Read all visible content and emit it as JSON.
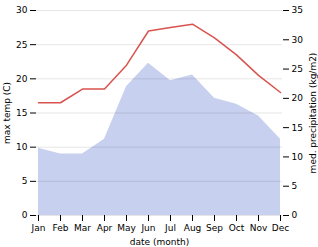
{
  "chart_data": {
    "type": "line",
    "xlabel": "date (month)",
    "ylabel": "max temp (C)",
    "y2label": "med. precipitation (kg/m2)",
    "categories": [
      "Jan",
      "Feb",
      "Mar",
      "Apr",
      "May",
      "Jun",
      "Jul",
      "Aug",
      "Sep",
      "Oct",
      "Nov",
      "Dec"
    ],
    "series": [
      {
        "type": "area",
        "axis": "y2",
        "color": "#c8d0f0",
        "values": [
          11.5,
          10.5,
          10.5,
          13.0,
          22.0,
          26.0,
          23.0,
          24.0,
          20.0,
          19.0,
          17.0,
          13.0
        ]
      },
      {
        "type": "line",
        "color": "#d9534f",
        "values": [
          16.5,
          16.5,
          18.5,
          18.5,
          22.0,
          27.0,
          27.5,
          28.0,
          26.0,
          23.5,
          20.5,
          18.0
        ]
      }
    ],
    "ylim": [
      0,
      30
    ],
    "yticks": [
      0,
      5,
      10,
      15,
      20,
      25,
      30
    ],
    "y2lim": [
      0,
      35
    ],
    "y2ticks": [
      0,
      5,
      10,
      15,
      20,
      25,
      30,
      35
    ],
    "grid": true
  }
}
